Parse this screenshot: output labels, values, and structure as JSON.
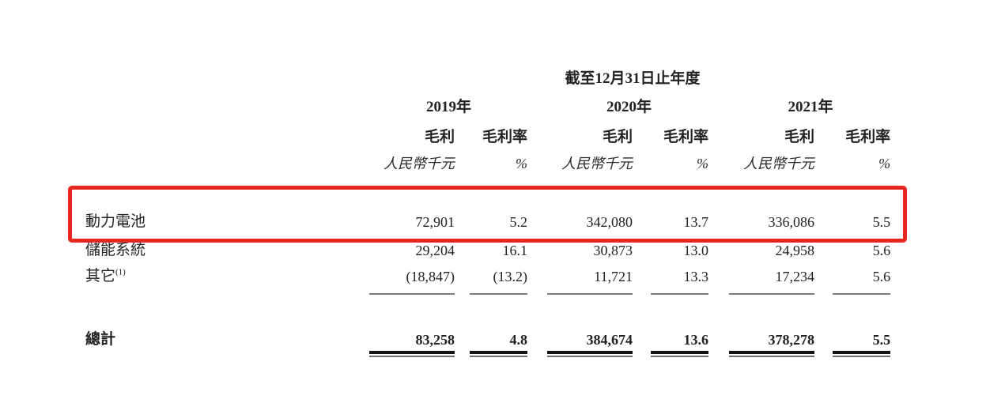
{
  "page": {
    "background": "#ffffff",
    "text_color": "#222225"
  },
  "highlight": {
    "color": "#e6261f"
  },
  "table": {
    "period_header": "截至12月31日止年度",
    "years": [
      {
        "label": "2019年"
      },
      {
        "label": "2020年"
      },
      {
        "label": "2021年"
      }
    ],
    "metrics": {
      "gross_profit": "毛利",
      "gross_margin": "毛利率"
    },
    "units": {
      "amount": "人民幣千元",
      "percent": "%"
    },
    "rows": [
      {
        "label": "動力電池",
        "highlighted": true,
        "values": [
          "72,901",
          "5.2",
          "342,080",
          "13.7",
          "336,086",
          "5.5"
        ]
      },
      {
        "label": "儲能系統",
        "highlighted": false,
        "values": [
          "29,204",
          "16.1",
          "30,873",
          "13.0",
          "24,958",
          "5.6"
        ]
      },
      {
        "label": "其它",
        "footnote_marker": "(1)",
        "highlighted": false,
        "values": [
          "(18,847)",
          "(13.2)",
          "11,721",
          "13.3",
          "17,234",
          "5.6"
        ]
      }
    ],
    "total": {
      "label": "總計",
      "values": [
        "83,258",
        "4.8",
        "384,674",
        "13.6",
        "378,278",
        "5.5"
      ]
    }
  }
}
